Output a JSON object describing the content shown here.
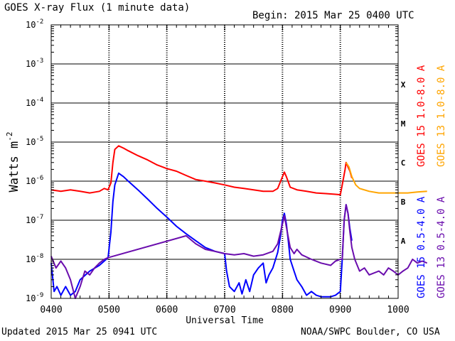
{
  "header": {
    "title": "GOES X-ray Flux (1 minute data)",
    "begin": "Begin: 2015 Mar 25 0400 UTC"
  },
  "footer": {
    "updated": "Updated 2015 Mar 25 0941 UTC",
    "credit": "NOAA/SWPC Boulder, CO USA"
  },
  "colors": {
    "goes15_long": "#ff0000",
    "goes13_long": "#ffa500",
    "goes15_short": "#0000ff",
    "goes13_short": "#6a0dad"
  },
  "chart_data": {
    "type": "line",
    "title": "GOES X-ray Flux (1 minute data)",
    "xlabel": "Universal Time",
    "ylabel": "Watts m",
    "ylabel_superscript": "-2",
    "x_unit": "UTC hhmm, 2015 Mar 25",
    "xlim": [
      "0400",
      "1000"
    ],
    "x_ticks": [
      "0400",
      "0500",
      "0600",
      "0700",
      "0800",
      "0900",
      "1000"
    ],
    "y_scale": "log",
    "ylim": [
      1e-09,
      0.01
    ],
    "y_ticks": [
      {
        "value": 1e-09,
        "base": "10",
        "exp": "-9"
      },
      {
        "value": 1e-08,
        "base": "10",
        "exp": "-8"
      },
      {
        "value": 1e-07,
        "base": "10",
        "exp": "-7"
      },
      {
        "value": 1e-06,
        "base": "10",
        "exp": "-6"
      },
      {
        "value": 1e-05,
        "base": "10",
        "exp": "-5"
      },
      {
        "value": 0.0001,
        "base": "10",
        "exp": "-4"
      },
      {
        "value": 0.001,
        "base": "10",
        "exp": "-3"
      },
      {
        "value": 0.01,
        "base": "10",
        "exp": "-2"
      }
    ],
    "flare_classes": [
      {
        "label": "A",
        "value": 3e-08
      },
      {
        "label": "B",
        "value": 3e-07
      },
      {
        "label": "C",
        "value": 3e-06
      },
      {
        "label": "M",
        "value": 3e-05
      },
      {
        "label": "X",
        "value": 0.0003
      }
    ],
    "grid": "horizontal lines at each decade; dashed verticals at hours",
    "legend": [
      {
        "label": "GOES 15 1.0-8.0 A",
        "color": "#ff0000"
      },
      {
        "label": "GOES 13 1.0-8.0 A",
        "color": "#ffa500"
      },
      {
        "label": "GOES 15 0.5-4.0 A",
        "color": "#0000ff"
      },
      {
        "label": "GOES 13 0.5-4.0 A",
        "color": "#6a0dad"
      }
    ],
    "legend_placement": "right, vertical",
    "series": [
      {
        "name": "GOES 15 1.0-8.0 A",
        "color": "#ff0000",
        "points": [
          [
            "0400",
            6e-07
          ],
          [
            "0410",
            5.5e-07
          ],
          [
            "0420",
            6e-07
          ],
          [
            "0430",
            5.5e-07
          ],
          [
            "0440",
            5e-07
          ],
          [
            "0450",
            5.5e-07
          ],
          [
            "0455",
            6.5e-07
          ],
          [
            "0459",
            6e-07
          ],
          [
            "0502",
            9e-07
          ],
          [
            "0504",
            3e-06
          ],
          [
            "0506",
            6.5e-06
          ],
          [
            "0510",
            8e-06
          ],
          [
            "0515",
            7e-06
          ],
          [
            "0520",
            6e-06
          ],
          [
            "0530",
            4.5e-06
          ],
          [
            "0540",
            3.5e-06
          ],
          [
            "0550",
            2.6e-06
          ],
          [
            "0600",
            2.1e-06
          ],
          [
            "0610",
            1.8e-06
          ],
          [
            "0620",
            1.4e-06
          ],
          [
            "0630",
            1.1e-06
          ],
          [
            "0640",
            1e-06
          ],
          [
            "0650",
            9e-07
          ],
          [
            "0700",
            8e-07
          ],
          [
            "0710",
            7e-07
          ],
          [
            "0720",
            6.5e-07
          ],
          [
            "0730",
            6e-07
          ],
          [
            "0740",
            5.5e-07
          ],
          [
            "0750",
            5.5e-07
          ],
          [
            "0755",
            6.5e-07
          ],
          [
            "0800",
            1.3e-06
          ],
          [
            "0802",
            1.7e-06
          ],
          [
            "0804",
            1.3e-06
          ],
          [
            "0808",
            7e-07
          ],
          [
            "0815",
            6e-07
          ],
          [
            "0825",
            5.5e-07
          ],
          [
            "0835",
            5e-07
          ],
          [
            "0845",
            4.8e-07
          ],
          [
            "0855",
            4.6e-07
          ],
          [
            "0900",
            4.5e-07
          ],
          [
            "0902",
            8e-07
          ],
          [
            "0905",
            2e-06
          ],
          [
            "0906",
            3e-06
          ],
          [
            "0910",
            1.8e-06
          ],
          [
            "0912",
            1.2e-06
          ]
        ]
      },
      {
        "name": "GOES 13 1.0-8.0 A",
        "color": "#ffa500",
        "points": [
          [
            "0906",
            3e-06
          ],
          [
            "0909",
            2.3e-06
          ],
          [
            "0912",
            1.3e-06
          ],
          [
            "0916",
            8e-07
          ],
          [
            "0920",
            6.5e-07
          ],
          [
            "0930",
            5.5e-07
          ],
          [
            "0940",
            5e-07
          ],
          [
            "0950",
            5e-07
          ],
          [
            "1000",
            5e-07
          ],
          [
            "1010",
            5e-07
          ],
          [
            "1020",
            5.3e-07
          ],
          [
            "1030",
            5.5e-07
          ]
        ]
      },
      {
        "name": "GOES 15 0.5-4.0 A",
        "color": "#0000ff",
        "points": [
          [
            "0400",
            8e-09
          ],
          [
            "0403",
            1.5e-09
          ],
          [
            "0406",
            2e-09
          ],
          [
            "0410",
            1.2e-09
          ],
          [
            "0415",
            2e-09
          ],
          [
            "0420",
            1.2e-09
          ],
          [
            "0425",
            1.5e-09
          ],
          [
            "0430",
            3e-09
          ],
          [
            "0440",
            5e-09
          ],
          [
            "0450",
            7e-09
          ],
          [
            "0455",
            9e-09
          ],
          [
            "0459",
            1.1e-08
          ],
          [
            "0502",
            5e-08
          ],
          [
            "0504",
            3e-07
          ],
          [
            "0506",
            8e-07
          ],
          [
            "0510",
            1.6e-06
          ],
          [
            "0515",
            1.3e-06
          ],
          [
            "0520",
            1e-06
          ],
          [
            "0530",
            6e-07
          ],
          [
            "0540",
            3.5e-07
          ],
          [
            "0550",
            2e-07
          ],
          [
            "0600",
            1.2e-07
          ],
          [
            "0610",
            7e-08
          ],
          [
            "0620",
            4.5e-08
          ],
          [
            "0630",
            3e-08
          ],
          [
            "0640",
            2e-08
          ],
          [
            "0650",
            1.6e-08
          ],
          [
            "0700",
            1.4e-08
          ],
          [
            "0702",
            5e-09
          ],
          [
            "0705",
            2e-09
          ],
          [
            "0710",
            1.5e-09
          ],
          [
            "0715",
            2.5e-09
          ],
          [
            "0718",
            1.3e-09
          ],
          [
            "0722",
            3e-09
          ],
          [
            "0726",
            1.5e-09
          ],
          [
            "0730",
            4e-09
          ],
          [
            "0735",
            6e-09
          ],
          [
            "0740",
            8e-09
          ],
          [
            "0743",
            2.5e-09
          ],
          [
            "0746",
            4e-09
          ],
          [
            "0750",
            6e-09
          ],
          [
            "0755",
            1.5e-08
          ],
          [
            "0758",
            4e-08
          ],
          [
            "0800",
            1e-07
          ],
          [
            "0802",
            1.5e-07
          ],
          [
            "0804",
            8e-08
          ],
          [
            "0806",
            3e-08
          ],
          [
            "0808",
            1e-08
          ],
          [
            "0812",
            5e-09
          ],
          [
            "0815",
            3e-09
          ],
          [
            "0820",
            2e-09
          ],
          [
            "0825",
            1.2e-09
          ],
          [
            "0830",
            1.5e-09
          ],
          [
            "0835",
            1.2e-09
          ],
          [
            "0840",
            1.1e-09
          ],
          [
            "0850",
            1.1e-09
          ],
          [
            "0855",
            1.2e-09
          ],
          [
            "0900",
            1.5e-09
          ],
          [
            "0902",
            1e-08
          ],
          [
            "0904",
            1e-07
          ],
          [
            "0906",
            2.5e-07
          ],
          [
            "0908",
            1.5e-07
          ],
          [
            "0910",
            6e-08
          ],
          [
            "0912",
            3e-08
          ]
        ]
      },
      {
        "name": "GOES 13 0.5-4.0 A",
        "color": "#6a0dad",
        "points": [
          [
            "0400",
            1.2e-08
          ],
          [
            "0405",
            6e-09
          ],
          [
            "0410",
            9e-09
          ],
          [
            "0415",
            6e-09
          ],
          [
            "0420",
            3e-09
          ],
          [
            "0425",
            1e-09
          ],
          [
            "0430",
            2e-09
          ],
          [
            "0435",
            5e-09
          ],
          [
            "0440",
            4e-09
          ],
          [
            "0445",
            6e-09
          ],
          [
            "0450",
            8e-09
          ],
          [
            "0455",
            1e-08
          ],
          [
            "0459",
            1.1e-08
          ],
          [
            "0620",
            4e-08
          ],
          [
            "0630",
            2.5e-08
          ],
          [
            "0640",
            1.8e-08
          ],
          [
            "0650",
            1.6e-08
          ],
          [
            "0700",
            1.4e-08
          ],
          [
            "0710",
            1.3e-08
          ],
          [
            "0720",
            1.4e-08
          ],
          [
            "0730",
            1.2e-08
          ],
          [
            "0740",
            1.3e-08
          ],
          [
            "0750",
            1.6e-08
          ],
          [
            "0755",
            2.5e-08
          ],
          [
            "0800",
            8e-08
          ],
          [
            "0802",
            1.3e-07
          ],
          [
            "0805",
            5e-08
          ],
          [
            "0808",
            2e-08
          ],
          [
            "0812",
            1.4e-08
          ],
          [
            "0815",
            1.8e-08
          ],
          [
            "0820",
            1.3e-08
          ],
          [
            "0830",
            1e-08
          ],
          [
            "0840",
            8e-09
          ],
          [
            "0850",
            7e-09
          ],
          [
            "0855",
            9e-09
          ],
          [
            "0900",
            1e-08
          ],
          [
            "0902",
            1e-08
          ],
          [
            "0904",
            1e-07
          ],
          [
            "0906",
            2.5e-07
          ],
          [
            "0908",
            1.5e-07
          ],
          [
            "0910",
            5e-08
          ],
          [
            "0912",
            2e-08
          ],
          [
            "0915",
            1e-08
          ],
          [
            "0920",
            5e-09
          ],
          [
            "0925",
            6e-09
          ],
          [
            "0930",
            4e-09
          ],
          [
            "0940",
            5e-09
          ],
          [
            "0945",
            4e-09
          ],
          [
            "0950",
            6e-09
          ],
          [
            "0955",
            5e-09
          ],
          [
            "1000",
            4e-09
          ],
          [
            "1005",
            5e-09
          ],
          [
            "1010",
            6e-09
          ],
          [
            "1015",
            1e-08
          ],
          [
            "1020",
            8e-09
          ],
          [
            "1025",
            9e-09
          ],
          [
            "1030",
            8e-09
          ]
        ]
      }
    ]
  }
}
